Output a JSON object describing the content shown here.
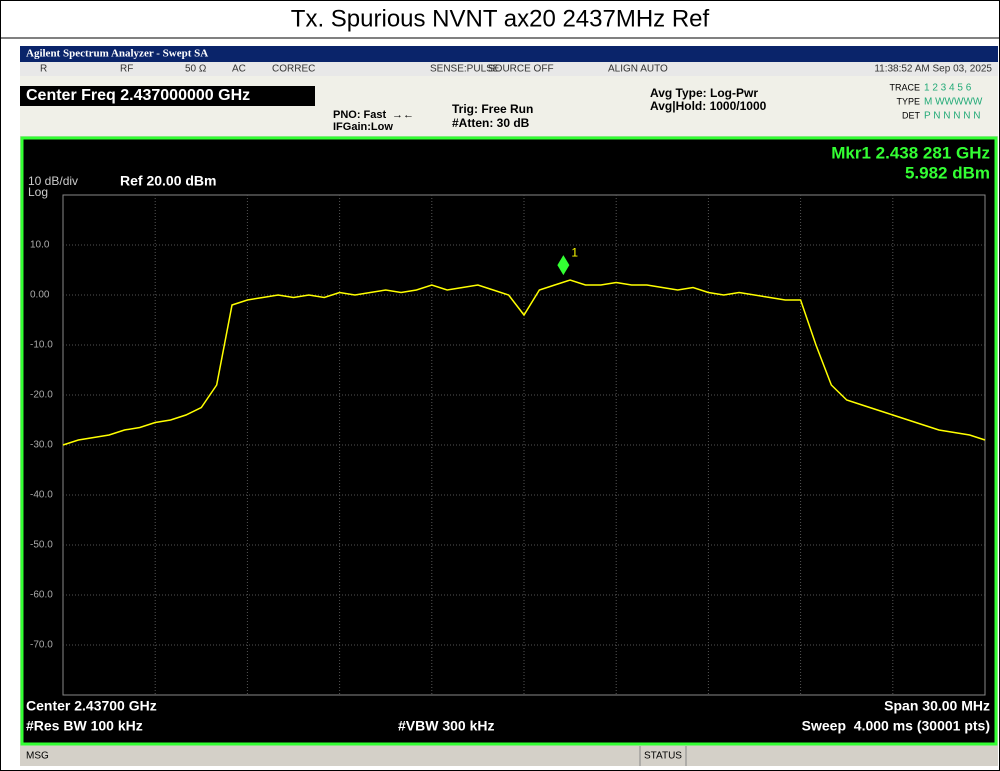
{
  "header": {
    "title": "Tx. Spurious NVNT ax20 2437MHz Ref"
  },
  "window": {
    "title": "Agilent Spectrum Analyzer - Swept SA"
  },
  "status_row": {
    "items": [
      "R",
      "RF",
      "50 Ω",
      "AC",
      "CORREC",
      "SENSE:PULSE",
      "SOURCE OFF",
      "ALIGN AUTO"
    ],
    "datetime": "11:38:52 AM Sep 03, 2025"
  },
  "settings": {
    "center_freq": "Center Freq 2.437000000 GHz",
    "pno": "PNO: Fast",
    "ifgain": "IFGain:Low",
    "trig": "Trig: Free Run",
    "atten": "#Atten: 30 dB",
    "avg_type": "Avg Type: Log-Pwr",
    "avg_hold": "Avg|Hold: 1000/1000",
    "trace_label": "TRACE",
    "trace_values": "1 2 3 4 5 6",
    "type_label": "TYPE",
    "type_values": "M WWWWW",
    "det_label": "DET",
    "det_values": "P N N N N N"
  },
  "marker_readout": {
    "freq": "Mkr1 2.438 281 GHz",
    "level": "5.982 dBm"
  },
  "scale": {
    "div": "10 dB/div",
    "log": "Log",
    "ref": "Ref 20.00 dBm"
  },
  "chart_data": {
    "type": "line",
    "color": "#ffff00",
    "grid": true,
    "xlim": [
      2.422,
      2.452
    ],
    "ylim": [
      -80,
      20
    ],
    "yticks": [
      {
        "value": 10,
        "label": "10.0"
      },
      {
        "value": 0,
        "label": "0.00"
      },
      {
        "value": -10,
        "label": "-10.0"
      },
      {
        "value": -20,
        "label": "-20.0"
      },
      {
        "value": -30,
        "label": "-30.0"
      },
      {
        "value": -40,
        "label": "-40.0"
      },
      {
        "value": -50,
        "label": "-50.0"
      },
      {
        "value": -60,
        "label": "-60.0"
      },
      {
        "value": -70,
        "label": "-70.0"
      }
    ],
    "x": [
      2.422,
      2.4225,
      2.423,
      2.4235,
      2.424,
      2.4245,
      2.425,
      2.4255,
      2.426,
      2.4265,
      2.427,
      2.4275,
      2.428,
      2.4285,
      2.429,
      2.4295,
      2.43,
      2.4305,
      2.431,
      2.4315,
      2.432,
      2.4325,
      2.433,
      2.4335,
      2.434,
      2.4345,
      2.435,
      2.4355,
      2.436,
      2.4365,
      2.437,
      2.4375,
      2.438,
      2.4385,
      2.439,
      2.4395,
      2.44,
      2.4405,
      2.441,
      2.4415,
      2.442,
      2.4425,
      2.443,
      2.4435,
      2.444,
      2.4445,
      2.445,
      2.4455,
      2.446,
      2.4465,
      2.447,
      2.4475,
      2.448,
      2.4485,
      2.449,
      2.4495,
      2.45,
      2.4505,
      2.451,
      2.4515,
      2.452
    ],
    "values": [
      -30,
      -29,
      -28.5,
      -28,
      -27,
      -26.5,
      -25.5,
      -25,
      -24,
      -22.5,
      -18,
      -2,
      -1,
      -0.5,
      0,
      -0.5,
      0,
      -0.5,
      0.5,
      0,
      0.5,
      1,
      0.5,
      1,
      2,
      1,
      1.5,
      2,
      1,
      0,
      -4,
      1,
      2,
      3,
      2,
      2,
      2.5,
      2,
      2,
      1.5,
      1,
      1.5,
      0.5,
      0,
      0.5,
      0,
      -0.5,
      -1,
      -1,
      -10,
      -18,
      -21,
      -22,
      -23,
      -24,
      -25,
      -26,
      -27,
      -27.5,
      -28,
      -29
    ],
    "marker": {
      "x": 2.438281,
      "value": 5.982,
      "label": "1"
    }
  },
  "footer": {
    "center": "Center 2.43700 GHz",
    "res_bw": "#Res BW 100 kHz",
    "vbw": "#VBW 300 kHz",
    "span": "Span 30.00 MHz",
    "sweep": "Sweep  4.000 ms (30001 pts)"
  },
  "status_bar": {
    "msg": "MSG",
    "status": "STATUS"
  }
}
